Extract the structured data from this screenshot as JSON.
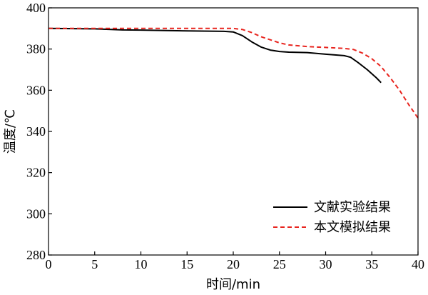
{
  "chart_data": {
    "type": "line",
    "xlabel": "时间/min",
    "ylabel": "温度/℃",
    "xlim": [
      0,
      40
    ],
    "ylim": [
      280,
      400
    ],
    "xticks": [
      0,
      5,
      10,
      15,
      20,
      25,
      30,
      35,
      40
    ],
    "yticks": [
      280,
      300,
      320,
      340,
      360,
      380,
      400
    ],
    "grid": false,
    "legend_position": "bottom-right",
    "series": [
      {
        "name": "文献实验结果",
        "color": "#000000",
        "style": "solid",
        "x": [
          0,
          5,
          8,
          10,
          15,
          19,
          20,
          21,
          22,
          23,
          24,
          25,
          26,
          28,
          30,
          32,
          32.7,
          33.5,
          34.5,
          35.5,
          36
        ],
        "y": [
          390,
          389.8,
          389.3,
          389.2,
          388.8,
          388.6,
          388.3,
          386.5,
          383.5,
          381,
          379.5,
          378.8,
          378.5,
          378.3,
          377.5,
          376.8,
          376,
          373.5,
          370,
          366,
          363.7
        ]
      },
      {
        "name": "本文模拟结果",
        "color": "#e8251f",
        "style": "dashed",
        "x": [
          0,
          5,
          10,
          15,
          20,
          21,
          22,
          23,
          24,
          25,
          26,
          28,
          30,
          32,
          33,
          34,
          35,
          36,
          37,
          38,
          39,
          40
        ],
        "y": [
          390,
          390,
          390,
          390,
          390,
          389.5,
          388,
          386,
          384.5,
          383,
          382,
          381.2,
          380.8,
          380.3,
          379.8,
          378,
          375.3,
          371.5,
          366,
          360,
          353,
          346.5
        ]
      }
    ]
  }
}
